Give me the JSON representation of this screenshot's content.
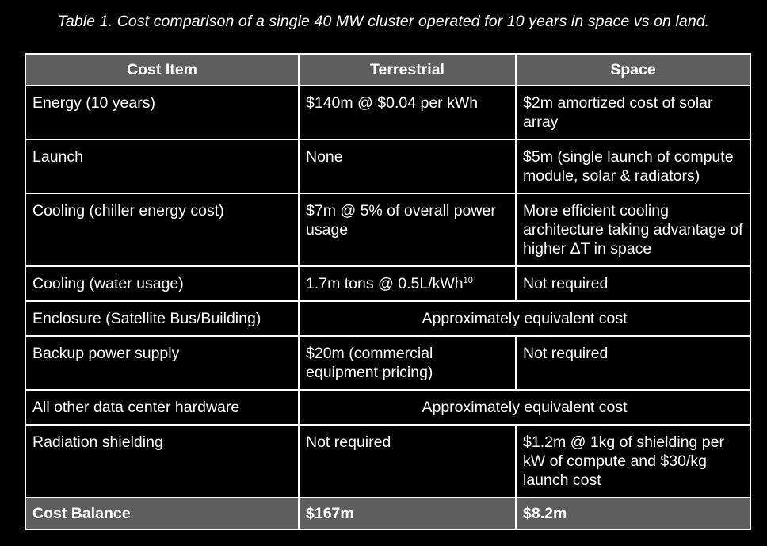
{
  "caption": "Table 1. Cost comparison of a single 40 MW cluster operated for 10 years in space vs on land.",
  "headers": {
    "item": "Cost Item",
    "terrestrial": "Terrestrial",
    "space": "Space"
  },
  "rows": [
    {
      "item": "Energy (10 years)",
      "terrestrial": "$140m @ $0.04 per kWh",
      "space": "$2m amortized cost of solar array"
    },
    {
      "item": "Launch",
      "terrestrial": "None",
      "space": "$5m (single launch of compute module, solar & radiators)"
    },
    {
      "item": "Cooling (chiller energy cost)",
      "terrestrial": "$7m @ 5% of overall power usage",
      "space": "More efficient cooling architecture taking advantage of higher ΔT in space"
    },
    {
      "item": "Cooling (water usage)",
      "terrestrial": "1.7m tons @ 0.5L/kWh",
      "terrestrial_ref": "10",
      "space": "Not required"
    },
    {
      "item": "Enclosure (Satellite Bus/Building)",
      "merged": "Approximately equivalent cost"
    },
    {
      "item": "Backup power supply",
      "terrestrial": "$20m (commercial equipment pricing)",
      "space": "Not required"
    },
    {
      "item": "All other data center hardware",
      "merged": "Approximately equivalent cost"
    },
    {
      "item": "Radiation shielding",
      "terrestrial": "Not required",
      "space": "$1.2m @ 1kg of shielding per kW of compute and $30/kg launch cost"
    }
  ],
  "total": {
    "item": "Cost Balance",
    "terrestrial": "$167m",
    "space": "$8.2m"
  },
  "colors": {
    "background": "#000000",
    "header_fill": "#5e5e5e",
    "border": "#ffffff",
    "text": "#ffffff"
  }
}
